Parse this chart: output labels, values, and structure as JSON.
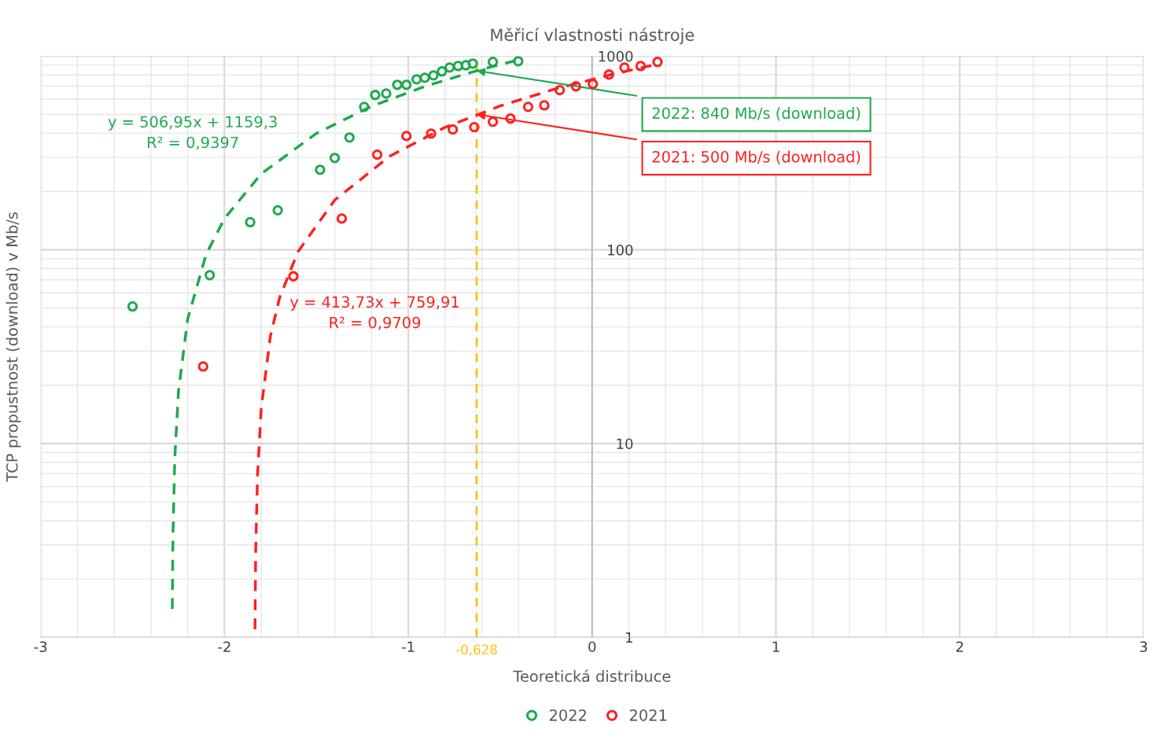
{
  "chart_data": {
    "type": "scatter",
    "title": "Měřicí vlastnosti nástroje",
    "xlabel": "Teoretická distribuce",
    "ylabel": "TCP propustnost (download) v Mb/s",
    "xlim": [
      -3,
      3
    ],
    "xticks": [
      -3,
      -2,
      -1,
      0,
      1,
      2,
      3
    ],
    "ylim": [
      1,
      1000
    ],
    "yticks": [
      1,
      10,
      100,
      1000
    ],
    "log": "y",
    "grid": true,
    "legend": "bottom",
    "series": [
      {
        "name": "2022",
        "color": "#1fa84f",
        "marker": "circle",
        "x": [
          -2.5,
          -2.08,
          -1.86,
          -1.71,
          -1.48,
          -1.4,
          -1.32,
          -1.24,
          -1.18,
          -1.12,
          -1.06,
          -1.01,
          -0.955,
          -0.91,
          -0.863,
          -0.817,
          -0.775,
          -0.729,
          -0.687,
          -0.649,
          -0.54,
          -0.402
        ],
        "values": [
          51,
          74,
          139,
          160,
          259,
          298,
          380,
          547,
          630,
          641,
          711,
          711,
          759,
          773,
          795,
          834,
          873,
          889,
          897,
          915,
          933,
          941
        ]
      },
      {
        "name": "2021",
        "color": "#ff2020",
        "marker": "circle",
        "x": [
          -2.116,
          -1.625,
          -1.362,
          -1.169,
          -1.01,
          -0.876,
          -0.758,
          -0.641,
          -0.54,
          -0.444,
          -0.348,
          -0.26,
          -0.176,
          -0.088,
          0.004,
          0.092,
          0.176,
          0.264,
          0.356
        ],
        "values": [
          25,
          73,
          145,
          310,
          387,
          398,
          418,
          430,
          458,
          476,
          547,
          557,
          667,
          698,
          718,
          803,
          873,
          889,
          933
        ]
      },
      {
        "name": "y = 506,95x + 1159,3\nR² = 0,9397",
        "type": "line",
        "line_style": "dashed",
        "marker": "none",
        "color": "#1fa84f",
        "x": [
          -2.284,
          -2.28,
          -2.27,
          -2.25,
          -2.2,
          -2.1,
          -2.0,
          -1.8,
          -1.5,
          -1.2,
          -0.9,
          -0.6,
          -0.4
        ],
        "values": [
          1.4,
          3.4,
          8.5,
          18.7,
          44,
          94.7,
          145,
          247,
          399,
          551,
          703,
          855,
          956
        ]
      },
      {
        "name": "y = 413,73x + 759,91\nR² = 0,9709",
        "type": "line",
        "line_style": "dashed",
        "marker": "none",
        "color": "#ff2020",
        "x": [
          -1.834,
          -1.83,
          -1.82,
          -1.8,
          -1.75,
          -1.7,
          -1.6,
          -1.4,
          -1.1,
          -0.8,
          -0.5,
          -0.2,
          0.1,
          0.356
        ],
        "values": [
          1.1,
          2.8,
          6.9,
          15.2,
          35.9,
          56.6,
          97.9,
          180.7,
          304.8,
          428.9,
          553.0,
          677.2,
          801.3,
          908.9
        ]
      }
    ],
    "ref_lines": [
      {
        "axis": "x",
        "value": -0.628,
        "label": "-0,628",
        "color": "#ffc000",
        "line_style": "dashed"
      }
    ],
    "annotations": [
      {
        "text": "2022: 840 Mb/s (download)",
        "x": -0.628,
        "y": 840
      },
      {
        "text": "2021: 500 Mb/s (download)",
        "x": -0.628,
        "y": 500
      }
    ]
  }
}
